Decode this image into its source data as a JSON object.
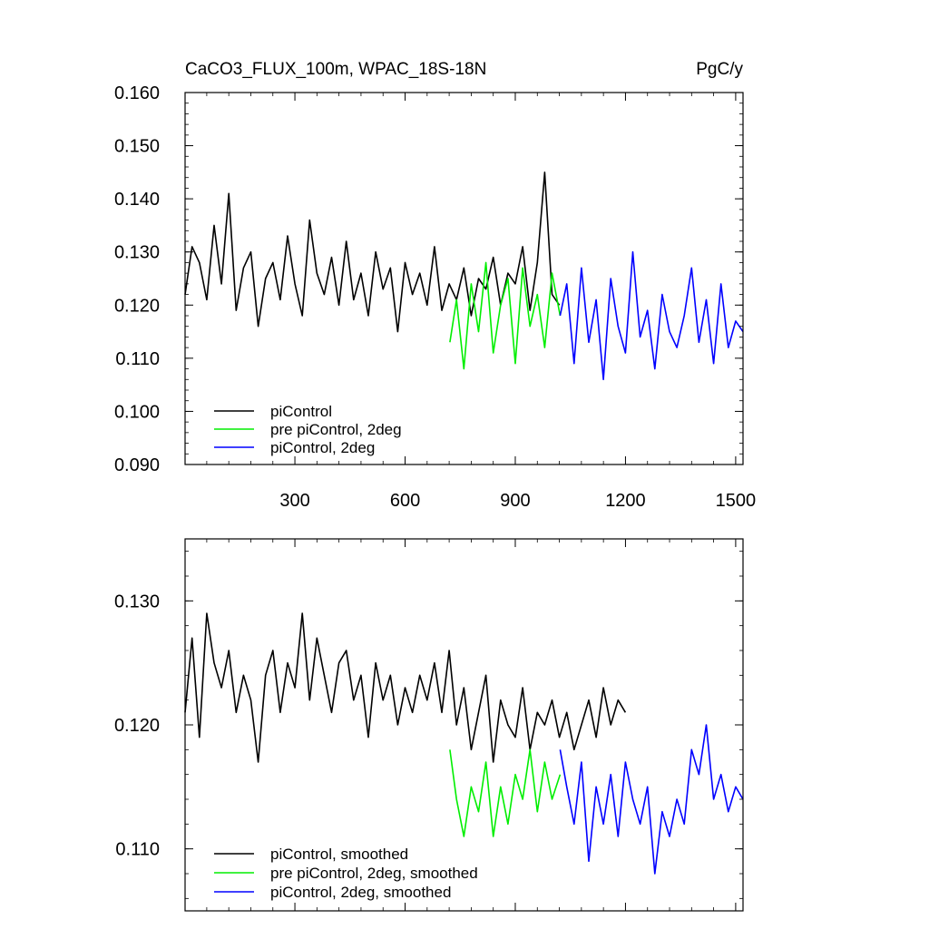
{
  "chart_data": [
    {
      "type": "line",
      "title": "CaCO3_FLUX_100m, WPAC_18S-18N",
      "units": "PgC/y",
      "xlabel": "",
      "ylabel": "",
      "xlim": [
        1,
        1520
      ],
      "ylim": [
        0.09,
        0.16
      ],
      "xticks": [
        300,
        600,
        900,
        1200,
        1500
      ],
      "xtick_labels": [
        "300",
        "600",
        "900",
        "1200",
        "1500"
      ],
      "yticks": [
        0.09,
        0.1,
        0.11,
        0.12,
        0.13,
        0.14,
        0.15,
        0.16
      ],
      "ytick_labels": [
        "0.090",
        "0.100",
        "0.110",
        "0.120",
        "0.130",
        "0.140",
        "0.150",
        "0.160"
      ],
      "grid": false,
      "legend_position": "bottom-left",
      "series": [
        {
          "name": "piControl",
          "color": "#000000",
          "x": [
            1,
            20,
            40,
            60,
            80,
            100,
            120,
            140,
            160,
            180,
            200,
            220,
            240,
            260,
            280,
            300,
            320,
            340,
            360,
            380,
            400,
            420,
            440,
            460,
            480,
            500,
            520,
            540,
            560,
            580,
            600,
            620,
            640,
            660,
            680,
            700,
            720,
            740,
            760,
            780,
            800,
            820,
            840,
            860,
            880,
            900,
            920,
            940,
            960,
            980,
            1000,
            1020
          ],
          "y": [
            0.122,
            0.131,
            0.128,
            0.121,
            0.135,
            0.124,
            0.141,
            0.119,
            0.127,
            0.13,
            0.116,
            0.125,
            0.128,
            0.121,
            0.133,
            0.124,
            0.118,
            0.136,
            0.126,
            0.122,
            0.129,
            0.12,
            0.132,
            0.121,
            0.126,
            0.118,
            0.13,
            0.123,
            0.127,
            0.115,
            0.128,
            0.122,
            0.126,
            0.12,
            0.131,
            0.119,
            0.124,
            0.121,
            0.127,
            0.118,
            0.125,
            0.123,
            0.129,
            0.12,
            0.126,
            0.124,
            0.131,
            0.119,
            0.128,
            0.145,
            0.122,
            0.12
          ]
        },
        {
          "name": "pre piControl, 2deg",
          "color": "#00ee00",
          "x": [
            722,
            740,
            760,
            780,
            800,
            820,
            840,
            860,
            880,
            900,
            920,
            940,
            960,
            980,
            1000,
            1022
          ],
          "y": [
            0.113,
            0.121,
            0.108,
            0.124,
            0.115,
            0.128,
            0.111,
            0.12,
            0.125,
            0.109,
            0.127,
            0.116,
            0.122,
            0.112,
            0.126,
            0.118
          ]
        },
        {
          "name": "piControl, 2deg",
          "color": "#0000ff",
          "x": [
            1022,
            1040,
            1060,
            1080,
            1100,
            1120,
            1140,
            1160,
            1180,
            1200,
            1220,
            1240,
            1260,
            1280,
            1300,
            1320,
            1340,
            1360,
            1380,
            1400,
            1420,
            1440,
            1460,
            1480,
            1500,
            1520
          ],
          "y": [
            0.118,
            0.124,
            0.109,
            0.127,
            0.113,
            0.121,
            0.106,
            0.125,
            0.116,
            0.111,
            0.13,
            0.114,
            0.119,
            0.108,
            0.122,
            0.115,
            0.112,
            0.118,
            0.127,
            0.113,
            0.121,
            0.109,
            0.124,
            0.112,
            0.117,
            0.115
          ]
        }
      ]
    },
    {
      "type": "line",
      "title": "",
      "xlabel": "",
      "ylabel": "",
      "xlim": [
        1,
        1520
      ],
      "ylim": [
        0.105,
        0.135
      ],
      "xticks": [
        300,
        600,
        900,
        1200,
        1500
      ],
      "yticks": [
        0.11,
        0.12,
        0.13
      ],
      "ytick_labels": [
        "0.110",
        "0.120",
        "0.130"
      ],
      "grid": false,
      "legend_position": "bottom-left",
      "series": [
        {
          "name": "piControl, smoothed",
          "color": "#000000",
          "x": [
            1,
            20,
            40,
            60,
            80,
            100,
            120,
            140,
            160,
            180,
            200,
            220,
            240,
            260,
            280,
            300,
            320,
            340,
            360,
            380,
            400,
            420,
            440,
            460,
            480,
            500,
            520,
            540,
            560,
            580,
            600,
            620,
            640,
            660,
            680,
            700,
            720,
            740,
            760,
            780,
            800,
            820,
            840,
            860,
            880,
            900,
            920,
            940,
            960,
            980,
            1000,
            1020,
            1040,
            1060,
            1080,
            1100,
            1120,
            1140,
            1160,
            1180,
            1200
          ],
          "y": [
            0.121,
            0.127,
            0.119,
            0.129,
            0.125,
            0.123,
            0.126,
            0.121,
            0.124,
            0.122,
            0.117,
            0.124,
            0.126,
            0.121,
            0.125,
            0.123,
            0.129,
            0.122,
            0.127,
            0.124,
            0.121,
            0.125,
            0.126,
            0.122,
            0.124,
            0.119,
            0.125,
            0.122,
            0.124,
            0.12,
            0.123,
            0.121,
            0.124,
            0.122,
            0.125,
            0.121,
            0.126,
            0.12,
            0.123,
            0.118,
            0.121,
            0.124,
            0.117,
            0.122,
            0.12,
            0.119,
            0.123,
            0.118,
            0.121,
            0.12,
            0.122,
            0.119,
            0.121,
            0.118,
            0.12,
            0.122,
            0.119,
            0.123,
            0.12,
            0.122,
            0.121
          ]
        },
        {
          "name": "pre piControl, 2deg, smoothed",
          "color": "#00ee00",
          "x": [
            722,
            740,
            760,
            780,
            800,
            820,
            840,
            860,
            880,
            900,
            920,
            940,
            960,
            980,
            1000,
            1022
          ],
          "y": [
            0.118,
            0.114,
            0.111,
            0.115,
            0.113,
            0.117,
            0.111,
            0.115,
            0.112,
            0.116,
            0.114,
            0.118,
            0.113,
            0.117,
            0.114,
            0.116
          ]
        },
        {
          "name": "piControl, 2deg, smoothed",
          "color": "#0000ff",
          "x": [
            1022,
            1040,
            1060,
            1080,
            1100,
            1120,
            1140,
            1160,
            1180,
            1200,
            1220,
            1240,
            1260,
            1280,
            1300,
            1320,
            1340,
            1360,
            1380,
            1400,
            1420,
            1440,
            1460,
            1480,
            1500,
            1520
          ],
          "y": [
            0.118,
            0.115,
            0.112,
            0.117,
            0.109,
            0.115,
            0.112,
            0.116,
            0.111,
            0.117,
            0.114,
            0.112,
            0.115,
            0.108,
            0.113,
            0.111,
            0.114,
            0.112,
            0.118,
            0.116,
            0.12,
            0.114,
            0.116,
            0.113,
            0.115,
            0.114
          ]
        }
      ]
    }
  ]
}
